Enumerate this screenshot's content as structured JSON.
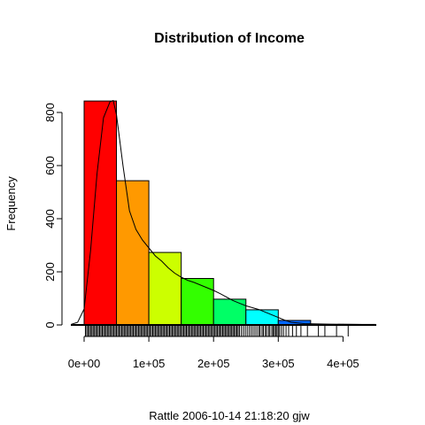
{
  "chart_data": {
    "type": "bar",
    "title": "Distribution of Income",
    "xlabel": "Rattle 2006-10-14 21:18:20 gjw",
    "ylabel": "Frequency",
    "xlim": [
      0,
      450000
    ],
    "ylim": [
      0,
      850
    ],
    "bins": [
      {
        "from": 0,
        "to": 50000,
        "count": 843,
        "color": "#FF0000"
      },
      {
        "from": 50000,
        "to": 100000,
        "count": 543,
        "color": "#FF9900"
      },
      {
        "from": 100000,
        "to": 150000,
        "count": 273,
        "color": "#CCFF00"
      },
      {
        "from": 150000,
        "to": 200000,
        "count": 175,
        "color": "#33FF00"
      },
      {
        "from": 200000,
        "to": 250000,
        "count": 97,
        "color": "#00FF66"
      },
      {
        "from": 250000,
        "to": 300000,
        "count": 57,
        "color": "#00FFFF"
      },
      {
        "from": 300000,
        "to": 350000,
        "count": 17,
        "color": "#0066FF"
      },
      {
        "from": 350000,
        "to": 400000,
        "count": 2,
        "color": "#3300FF"
      },
      {
        "from": 400000,
        "to": 450000,
        "count": 2,
        "color": "#CC00FF"
      }
    ],
    "density_curve": [
      [
        -20000,
        2
      ],
      [
        -10000,
        10
      ],
      [
        0,
        60
      ],
      [
        10000,
        280
      ],
      [
        20000,
        570
      ],
      [
        30000,
        780
      ],
      [
        40000,
        840
      ],
      [
        45000,
        845
      ],
      [
        50000,
        790
      ],
      [
        60000,
        600
      ],
      [
        70000,
        430
      ],
      [
        80000,
        360
      ],
      [
        90000,
        320
      ],
      [
        100000,
        290
      ],
      [
        110000,
        260
      ],
      [
        120000,
        240
      ],
      [
        130000,
        215
      ],
      [
        140000,
        195
      ],
      [
        150000,
        180
      ],
      [
        160000,
        168
      ],
      [
        170000,
        160
      ],
      [
        180000,
        150
      ],
      [
        190000,
        140
      ],
      [
        200000,
        130
      ],
      [
        210000,
        118
      ],
      [
        220000,
        105
      ],
      [
        230000,
        92
      ],
      [
        240000,
        82
      ],
      [
        250000,
        72
      ],
      [
        260000,
        65
      ],
      [
        270000,
        58
      ],
      [
        280000,
        48
      ],
      [
        290000,
        38
      ],
      [
        300000,
        28
      ],
      [
        310000,
        18
      ],
      [
        320000,
        10
      ],
      [
        340000,
        5
      ],
      [
        380000,
        3
      ],
      [
        420000,
        2
      ],
      [
        450000,
        1
      ]
    ],
    "x_ticks": [
      {
        "value": 0,
        "label": "0e+00"
      },
      {
        "value": 100000,
        "label": "1e+05"
      },
      {
        "value": 200000,
        "label": "2e+05"
      },
      {
        "value": 300000,
        "label": "3e+05"
      },
      {
        "value": 400000,
        "label": "4e+05"
      }
    ],
    "y_ticks": [
      {
        "value": 0,
        "label": "0"
      },
      {
        "value": 200,
        "label": "200"
      },
      {
        "value": 400,
        "label": "400"
      },
      {
        "value": 600,
        "label": "600"
      },
      {
        "value": 800,
        "label": "800"
      }
    ],
    "rug": [
      2000,
      4000,
      6000,
      8000,
      10000,
      12000,
      14000,
      16000,
      18000,
      20000,
      22000,
      24000,
      26000,
      28000,
      30000,
      32000,
      34000,
      36000,
      38000,
      40000,
      42000,
      44000,
      46000,
      48000,
      50000,
      52000,
      54000,
      56000,
      58000,
      60000,
      62000,
      64000,
      66000,
      68000,
      70000,
      72000,
      74000,
      76000,
      78000,
      80000,
      82000,
      84000,
      86000,
      88000,
      90000,
      92000,
      94000,
      96000,
      98000,
      100000,
      102000,
      104000,
      106000,
      108000,
      110000,
      112000,
      114000,
      116000,
      118000,
      120000,
      122000,
      124000,
      126000,
      128000,
      130000,
      132000,
      134000,
      136000,
      138000,
      140000,
      142000,
      144000,
      146000,
      148000,
      150000,
      152000,
      154000,
      156000,
      158000,
      160000,
      162000,
      164000,
      166000,
      168000,
      170000,
      172000,
      174000,
      176000,
      178000,
      180000,
      182000,
      184000,
      186000,
      188000,
      190000,
      192000,
      194000,
      196000,
      198000,
      200000,
      202000,
      204000,
      206000,
      208000,
      210000,
      212000,
      214000,
      216000,
      218000,
      220000,
      222000,
      224000,
      226000,
      228000,
      230000,
      232000,
      234000,
      236000,
      238000,
      240000,
      243000,
      246000,
      249000,
      252000,
      255000,
      258000,
      261000,
      264000,
      267000,
      270000,
      272000,
      275000,
      277000,
      280000,
      282000,
      285000,
      287000,
      290000,
      292000,
      294000,
      296000,
      298000,
      300000,
      302000,
      305000,
      308000,
      312000,
      316000,
      322000,
      328000,
      335000,
      345000,
      362000,
      372000,
      390000,
      408000
    ]
  }
}
